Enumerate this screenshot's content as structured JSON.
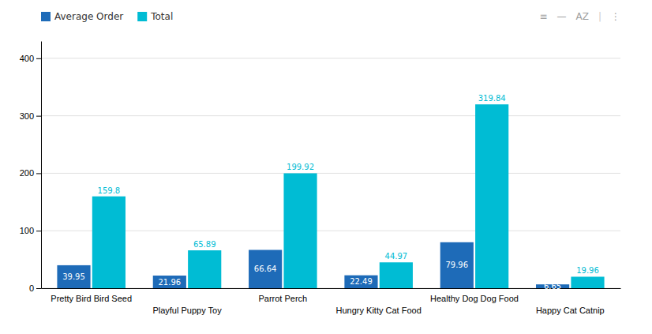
{
  "chart_data": {
    "type": "bar",
    "categories": [
      "Pretty Bird Bird Seed",
      "Playful Puppy Toy",
      "Parrot Perch",
      "Hungry Kitty Cat Food",
      "Healthy Dog Dog Food",
      "Happy Cat Catnip"
    ],
    "series": [
      {
        "name": "Average Order",
        "color": "#1e6bb8",
        "values": [
          39.95,
          21.96,
          66.64,
          22.49,
          79.96,
          6.65
        ]
      },
      {
        "name": "Total",
        "color": "#00bcd4",
        "values": [
          159.8,
          65.89,
          199.92,
          44.97,
          319.84,
          19.96
        ]
      }
    ],
    "ylim": [
      0,
      430
    ],
    "yticks": [
      0,
      100,
      200,
      300,
      400
    ],
    "grid": true,
    "legend": "top-left",
    "data_labels": true,
    "annotations": [
      "≡",
      "—",
      "AZ",
      "|",
      "⋮"
    ]
  }
}
